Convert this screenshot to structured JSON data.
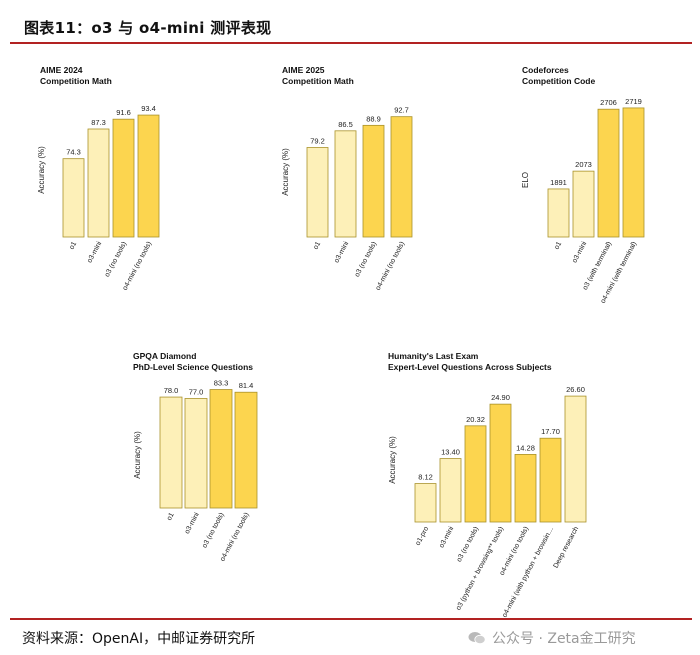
{
  "header": {
    "title": "图表11：o3 与 o4-mini 测评表现"
  },
  "footer": {
    "source": "资料来源：OpenAI，中邮证券研究所",
    "watermark": "公众号 · Zeta金工研究"
  },
  "colors": {
    "light_bar": "#fdf0b8",
    "dark_bar": "#fcd54f",
    "bar_edge": "#a9922a",
    "rule": "#b22222"
  },
  "chart_data": [
    {
      "type": "bar",
      "title": "AIME 2024",
      "subtitle": "Competition Math",
      "ylabel": "Accuracy (%)",
      "categories": [
        "o1",
        "o3-mini",
        "o3 (no tools)",
        "o4-mini (no tools)"
      ],
      "values": [
        74.3,
        87.3,
        91.6,
        93.4
      ],
      "labels": [
        "74.3",
        "87.3",
        "91.6",
        "93.4"
      ],
      "highlight": [
        false,
        false,
        true,
        true
      ],
      "ylim": [
        40,
        100
      ]
    },
    {
      "type": "bar",
      "title": "AIME 2025",
      "subtitle": "Competition Math",
      "ylabel": "Accuracy (%)",
      "categories": [
        "o1",
        "o3-mini",
        "o3 (no tools)",
        "o4-mini (no tools)"
      ],
      "values": [
        79.2,
        86.5,
        88.9,
        92.7
      ],
      "labels": [
        "79.2",
        "86.5",
        "88.9",
        "92.7"
      ],
      "highlight": [
        false,
        false,
        true,
        true
      ],
      "ylim": [
        40,
        100
      ]
    },
    {
      "type": "bar",
      "title": "Codeforces",
      "subtitle": "Competition Code",
      "ylabel": "ELO",
      "categories": [
        "o1",
        "o3-mini",
        "o3 (with terminal)",
        "o4-mini (with terminal)"
      ],
      "values": [
        1891,
        2073,
        2706,
        2719
      ],
      "labels": [
        "1891",
        "2073",
        "2706",
        "2719"
      ],
      "highlight": [
        false,
        false,
        true,
        true
      ],
      "ylim": [
        1400,
        2800
      ]
    },
    {
      "type": "bar",
      "title": "GPQA Diamond",
      "subtitle": "PhD-Level Science Questions",
      "ylabel": "Accuracy (%)",
      "categories": [
        "o1",
        "o3-mini",
        "o3 (no tools)",
        "o4-mini (no tools)"
      ],
      "values": [
        78.0,
        77.0,
        83.3,
        81.4
      ],
      "labels": [
        "78.0",
        "77.0",
        "83.3",
        "81.4"
      ],
      "highlight": [
        false,
        false,
        true,
        true
      ],
      "ylim": [
        0,
        90
      ]
    },
    {
      "type": "bar",
      "title": "Humanity's Last Exam",
      "subtitle": "Expert-Level Questions Across Subjects",
      "ylabel": "Accuracy (%)",
      "categories": [
        "o1-pro",
        "o3-mini",
        "o3 (no tools)",
        "o3 (python + browsing** tools)",
        "o4-mini (no tools)",
        "o4-mini (with python + browsin…",
        "Deep research"
      ],
      "values": [
        8.12,
        13.4,
        20.32,
        24.9,
        14.28,
        17.7,
        26.6
      ],
      "labels": [
        "8.12",
        "13.40",
        "20.32",
        "24.90",
        "14.28",
        "17.70",
        "26.60"
      ],
      "highlight": [
        false,
        false,
        true,
        true,
        true,
        true,
        false
      ],
      "ylim": [
        0,
        30
      ]
    }
  ]
}
